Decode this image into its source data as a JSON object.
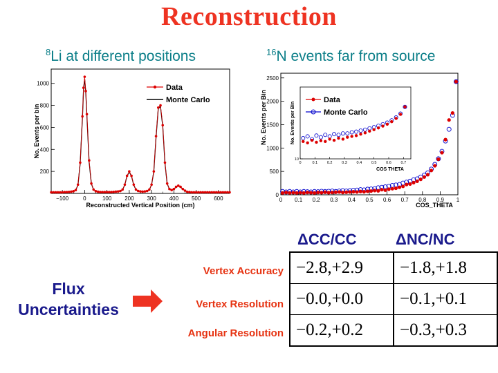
{
  "title": "Reconstruction",
  "left_panel": {
    "sup": "8",
    "text": "Li at different positions"
  },
  "right_panel": {
    "sup": "16",
    "text": "N events far from source"
  },
  "chart_data": [
    {
      "type": "line",
      "xlabel": "Reconstructed Vertical Position (cm)",
      "ylabel": "No. Events per bin",
      "xlim": [
        -150,
        650
      ],
      "ylim": [
        0,
        1130
      ],
      "xticks": [
        -100,
        0,
        100,
        200,
        300,
        400,
        500,
        600
      ],
      "yticks": [
        200,
        400,
        600,
        800,
        1000
      ],
      "legend": [
        "Data",
        "Monte Carlo"
      ],
      "legend_position": "top-right",
      "x": [
        -150,
        -140,
        -130,
        -120,
        -110,
        -100,
        -90,
        -80,
        -70,
        -60,
        -50,
        -40,
        -30,
        -20,
        -10,
        -5,
        0,
        5,
        10,
        20,
        30,
        40,
        50,
        60,
        70,
        80,
        90,
        100,
        110,
        120,
        130,
        140,
        150,
        160,
        170,
        180,
        190,
        200,
        210,
        220,
        230,
        240,
        250,
        260,
        270,
        280,
        290,
        300,
        310,
        320,
        330,
        340,
        350,
        360,
        370,
        380,
        390,
        400,
        410,
        420,
        430,
        440,
        450,
        460,
        470,
        480,
        490,
        500,
        510,
        520,
        530,
        540,
        550,
        560,
        570,
        580,
        590,
        600,
        610,
        620,
        630,
        640,
        650
      ],
      "series": [
        {
          "name": "Data",
          "values": [
            10,
            10,
            10,
            10,
            10,
            10,
            12,
            12,
            14,
            16,
            20,
            30,
            80,
            280,
            700,
            960,
            1060,
            930,
            720,
            300,
            90,
            35,
            20,
            15,
            12,
            12,
            12,
            12,
            12,
            12,
            14,
            16,
            18,
            22,
            35,
            80,
            160,
            200,
            160,
            80,
            35,
            22,
            18,
            16,
            18,
            22,
            35,
            80,
            200,
            520,
            780,
            800,
            620,
            280,
            90,
            40,
            30,
            40,
            60,
            70,
            60,
            40,
            25,
            14,
            12,
            10,
            10,
            10,
            10,
            10,
            10,
            10,
            10,
            10,
            10,
            10,
            10,
            10,
            10,
            10,
            10,
            10,
            10
          ]
        },
        {
          "name": "Monte Carlo",
          "values": [
            10,
            10,
            10,
            10,
            10,
            10,
            12,
            12,
            14,
            16,
            20,
            30,
            75,
            270,
            690,
            950,
            1040,
            920,
            710,
            290,
            88,
            34,
            20,
            15,
            12,
            12,
            12,
            12,
            12,
            12,
            14,
            16,
            18,
            22,
            33,
            78,
            158,
            195,
            158,
            78,
            33,
            22,
            18,
            16,
            18,
            22,
            33,
            78,
            195,
            510,
            770,
            790,
            610,
            275,
            88,
            40,
            30,
            40,
            58,
            68,
            58,
            40,
            25,
            14,
            12,
            10,
            10,
            10,
            10,
            10,
            10,
            10,
            10,
            10,
            10,
            10,
            10,
            10,
            10,
            10,
            10,
            10,
            10
          ]
        }
      ]
    },
    {
      "type": "scatter",
      "xlabel": "COS_THETA",
      "ylabel": "No. Events per Bin",
      "xlim": [
        0,
        1
      ],
      "ylim": [
        0,
        2600
      ],
      "xticks": [
        0,
        0.1,
        0.2,
        0.3,
        0.4,
        0.5,
        0.6,
        0.7,
        0.8,
        0.9,
        1
      ],
      "yticks": [
        0,
        500,
        1000,
        1500,
        2000,
        2500
      ],
      "legend": [
        "Data",
        "Monte Carlo"
      ],
      "legend_position": "inset",
      "x": [
        0.01,
        0.03,
        0.05,
        0.07,
        0.09,
        0.11,
        0.13,
        0.15,
        0.17,
        0.19,
        0.21,
        0.23,
        0.25,
        0.27,
        0.29,
        0.31,
        0.33,
        0.35,
        0.37,
        0.39,
        0.41,
        0.43,
        0.45,
        0.47,
        0.49,
        0.51,
        0.53,
        0.55,
        0.57,
        0.59,
        0.61,
        0.63,
        0.65,
        0.67,
        0.69,
        0.71,
        0.73,
        0.75,
        0.77,
        0.79,
        0.81,
        0.83,
        0.85,
        0.87,
        0.89,
        0.91,
        0.93,
        0.95,
        0.97,
        0.99
      ],
      "series": [
        {
          "name": "Data",
          "values": [
            40,
            50,
            40,
            45,
            40,
            45,
            40,
            50,
            45,
            40,
            50,
            45,
            55,
            45,
            50,
            55,
            60,
            50,
            55,
            60,
            65,
            60,
            70,
            65,
            75,
            80,
            90,
            85,
            110,
            100,
            120,
            130,
            140,
            160,
            180,
            220,
            230,
            260,
            290,
            330,
            380,
            430,
            520,
            620,
            760,
            900,
            1180,
            1600,
            1750,
            2420
          ]
        },
        {
          "name": "Monte Carlo",
          "values": [
            70,
            60,
            70,
            60,
            70,
            60,
            70,
            65,
            60,
            70,
            65,
            75,
            70,
            75,
            80,
            70,
            80,
            90,
            80,
            90,
            95,
            100,
            110,
            105,
            120,
            125,
            130,
            150,
            160,
            170,
            180,
            200,
            210,
            220,
            250,
            270,
            290,
            320,
            340,
            380,
            420,
            470,
            550,
            650,
            770,
            930,
            1150,
            1400,
            1700,
            2420
          ]
        }
      ]
    },
    {
      "type": "scatter",
      "xlabel": "COS THETA",
      "ylabel": "No. Events per Bin",
      "x_scale": "linear",
      "y_scale": "log",
      "xlim": [
        0,
        0.75
      ],
      "ylim": [
        10,
        5000
      ],
      "xticks": [
        0,
        0.1,
        0.2,
        0.3,
        0.4,
        0.5,
        0.6,
        0.7
      ],
      "yticks": [
        10
      ],
      "legend": [
        "Data",
        "Monte Carlo"
      ],
      "legend_position": "top-left",
      "x": [
        0.02,
        0.05,
        0.08,
        0.11,
        0.14,
        0.17,
        0.2,
        0.23,
        0.26,
        0.29,
        0.32,
        0.35,
        0.38,
        0.41,
        0.44,
        0.47,
        0.5,
        0.53,
        0.56,
        0.59,
        0.62,
        0.65,
        0.68,
        0.71
      ],
      "series": [
        {
          "name": "Data",
          "values": [
            45,
            40,
            50,
            42,
            48,
            45,
            55,
            50,
            60,
            55,
            65,
            70,
            75,
            85,
            95,
            110,
            125,
            145,
            170,
            200,
            250,
            330,
            470,
            900
          ]
        },
        {
          "name": "Monte Carlo",
          "values": [
            60,
            70,
            55,
            75,
            65,
            80,
            70,
            85,
            80,
            90,
            90,
            100,
            105,
            115,
            125,
            140,
            155,
            175,
            200,
            230,
            280,
            360,
            500,
            900
          ]
        }
      ]
    }
  ],
  "table": {
    "col1_header": "ΔCC/CC",
    "col2_header": "ΔNC/NC",
    "group_label_line1": "Flux",
    "group_label_line2": "Uncertainties",
    "rows": [
      {
        "label": "Vertex Accuracy",
        "cc": "−2.8,+2.9",
        "nc": "−1.8,+1.8"
      },
      {
        "label": "Vertex Resolution",
        "cc": "−0.0,+0.0",
        "nc": "−0.1,+0.1"
      },
      {
        "label": "Angular Resolution",
        "cc": "−0.2,+0.2",
        "nc": "−0.3,+0.3"
      }
    ]
  },
  "colors": {
    "title": "#ee3322",
    "subtitle": "#0b7e88",
    "header": "#1a1a8c",
    "row_label": "#e63312",
    "data": "#dd0000",
    "mc": "#0000cc",
    "arrow": "#ee3322"
  }
}
